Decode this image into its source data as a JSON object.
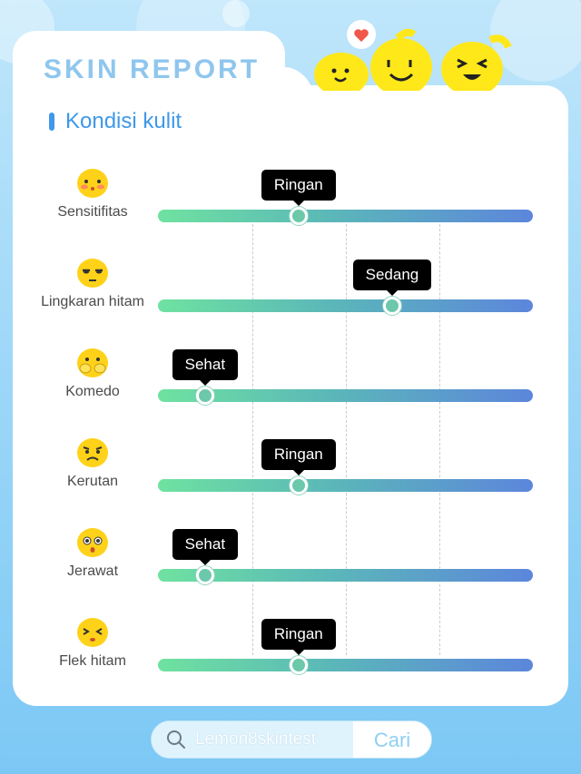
{
  "header": {
    "title": "SKIN REPORT"
  },
  "section": {
    "title": "Kondisi kulit"
  },
  "rows": [
    {
      "label": "Sensitifitas",
      "level": "Ringan",
      "position": 0.375,
      "emoji": "blushing-face-icon"
    },
    {
      "label": "Lingkaran hitam",
      "level": "Sedang",
      "position": 0.625,
      "emoji": "tired-face-icon"
    },
    {
      "label": "Komedo",
      "level": "Sehat",
      "position": 0.125,
      "emoji": "covering-face-icon"
    },
    {
      "label": "Kerutan",
      "level": "Ringan",
      "position": 0.375,
      "emoji": "frowning-face-icon"
    },
    {
      "label": "Jerawat",
      "level": "Sehat",
      "position": 0.125,
      "emoji": "surprised-face-icon"
    },
    {
      "label": "Flek hitam",
      "level": "Ringan",
      "position": 0.375,
      "emoji": "squinting-face-icon"
    }
  ],
  "search": {
    "query": "Lemon8skintest",
    "button_label": "Cari"
  },
  "colors": {
    "accent": "#3f98e8",
    "track_start": "#6fe2a0",
    "track_end": "#5c86dc",
    "mascot": "#ffe81a"
  }
}
